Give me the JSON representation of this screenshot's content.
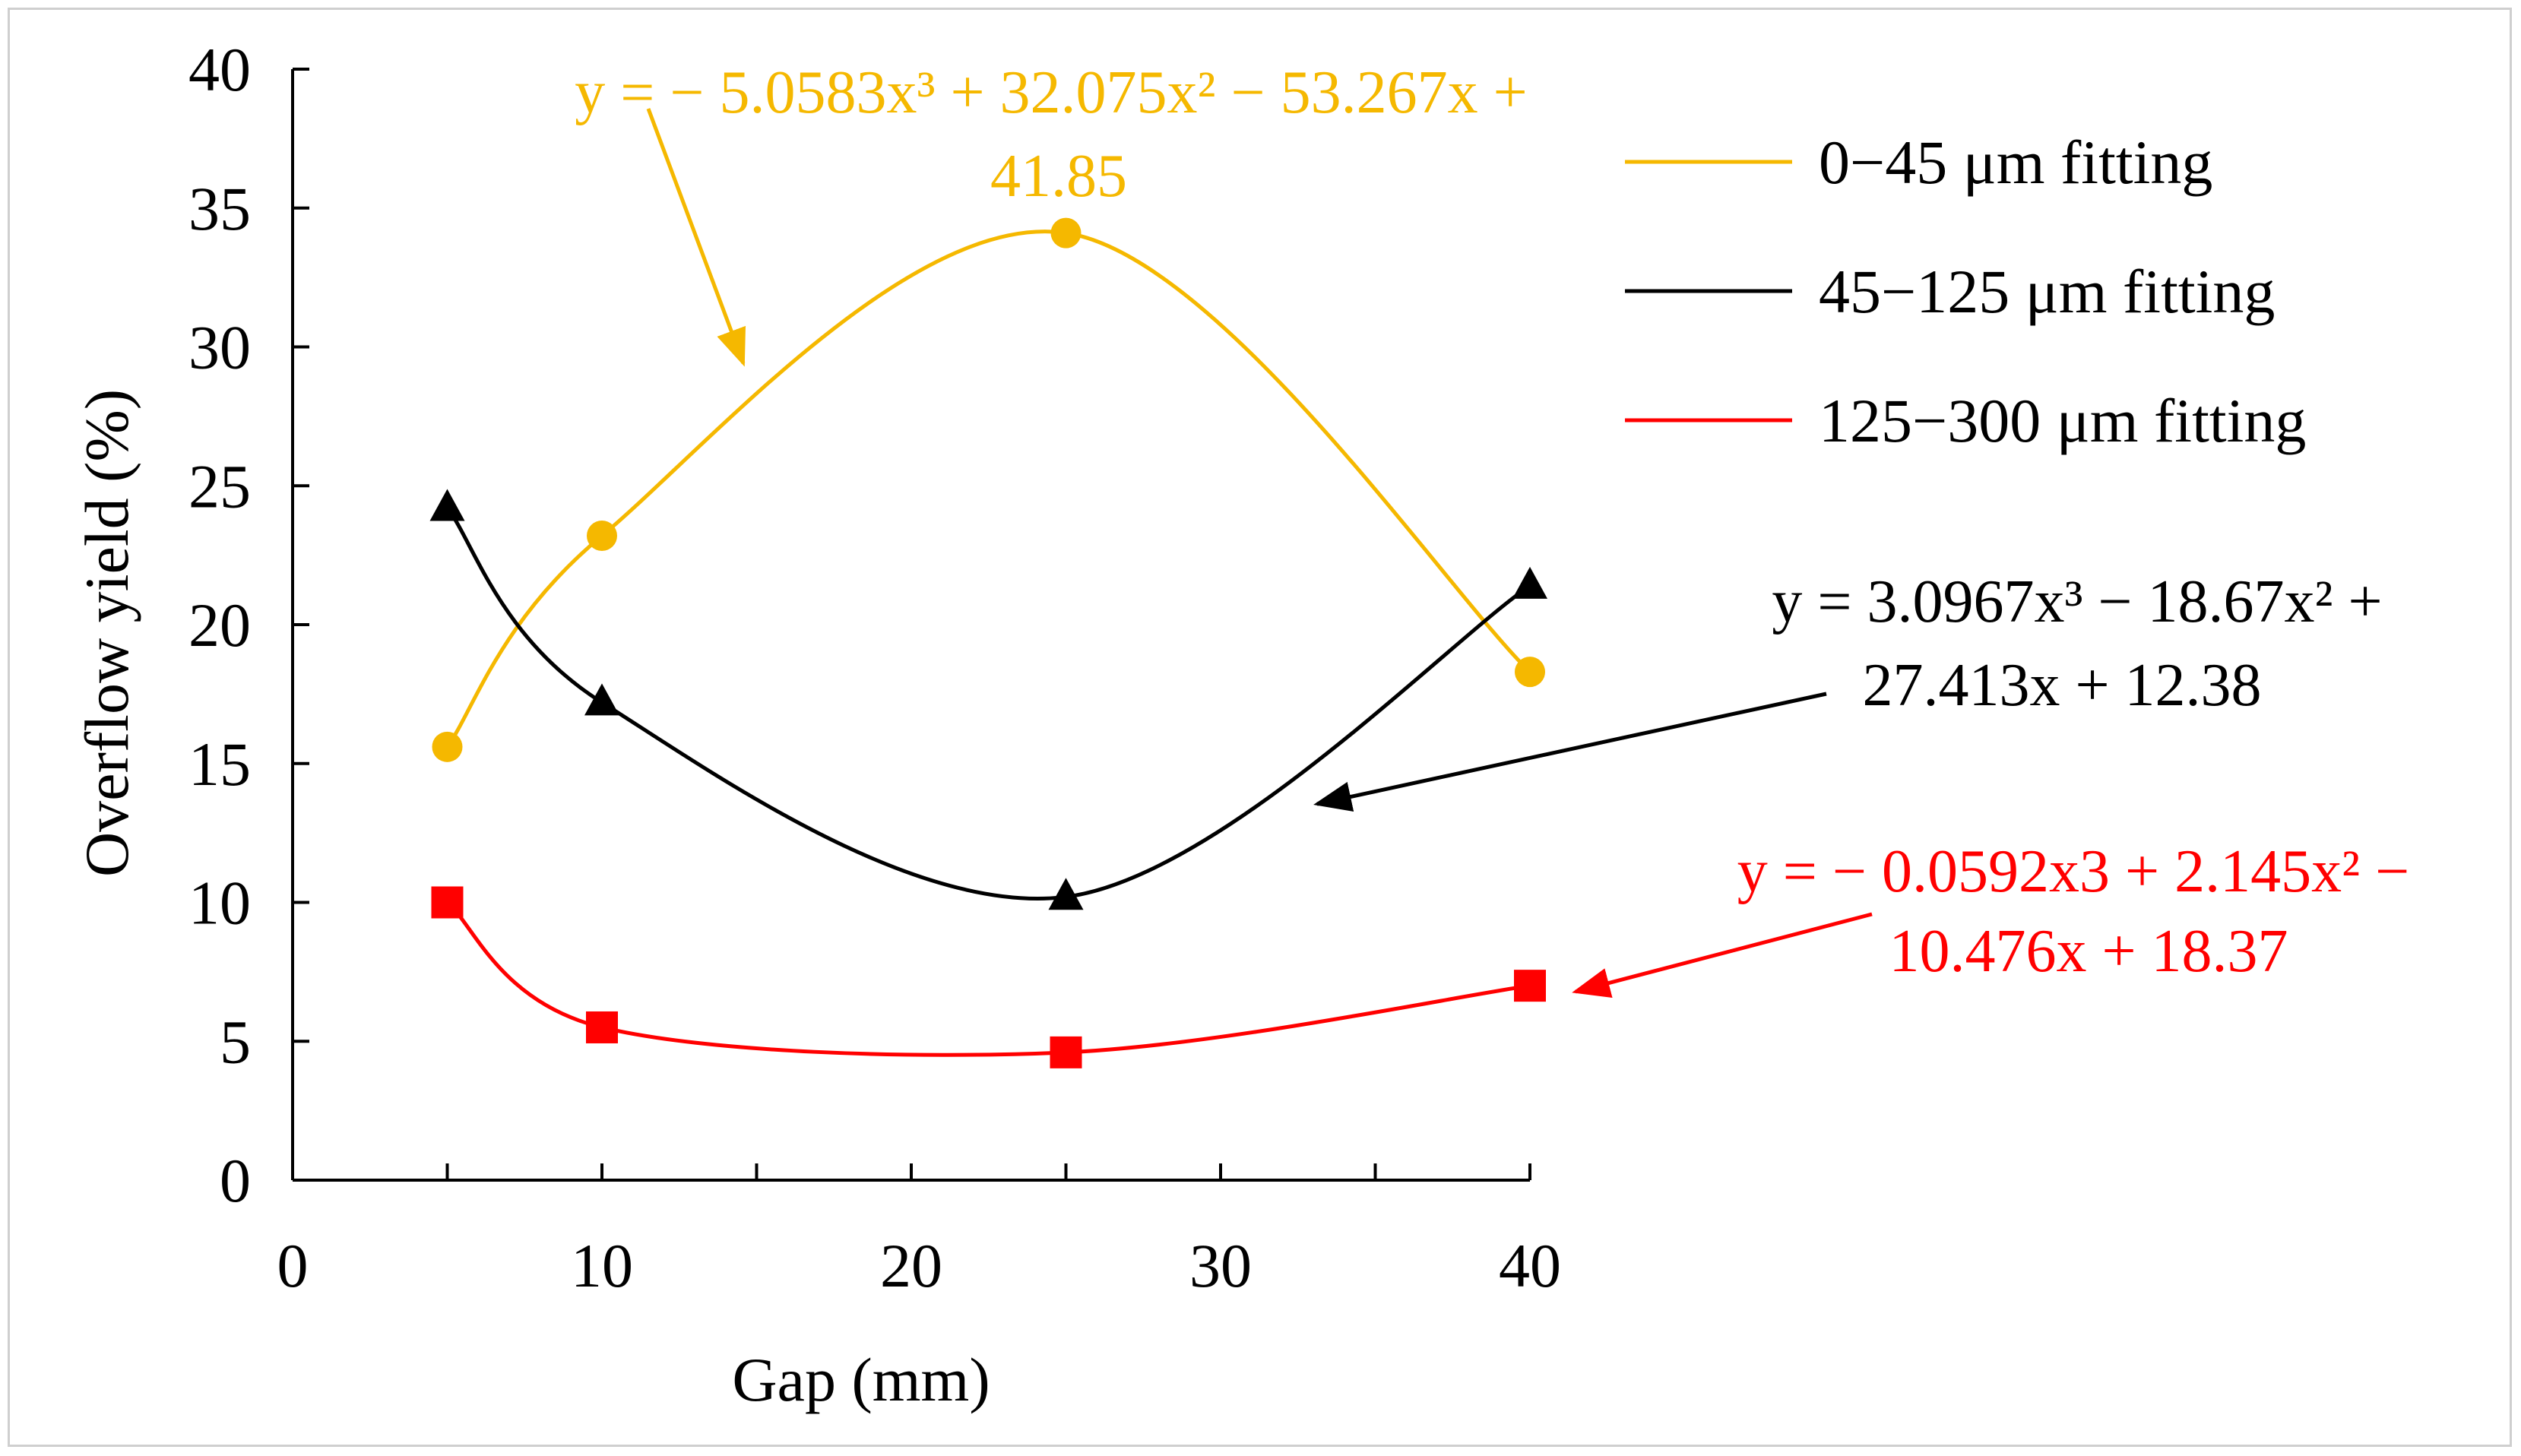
{
  "chart_data": {
    "type": "line",
    "title": "",
    "xlabel": "Gap (mm)",
    "ylabel": "Overflow yield (%)",
    "xlim": [
      0,
      40
    ],
    "ylim": [
      0,
      40
    ],
    "xticks": [
      0,
      10,
      20,
      30,
      40
    ],
    "yticks": [
      0,
      5,
      10,
      15,
      20,
      25,
      30,
      35,
      40
    ],
    "legend_position": "top-right",
    "series": [
      {
        "name": "0−45 μm fitting",
        "color": "#F5B800",
        "marker": "circle",
        "x": [
          5,
          10,
          25,
          40
        ],
        "y": [
          15.6,
          23.2,
          34.1,
          18.3
        ],
        "equation_line1": "y = − 5.0583x³ + 32.075x² − 53.267x +",
        "equation_line2": "41.85"
      },
      {
        "name": "45−125 μm fitting",
        "color": "#000000",
        "marker": "triangle",
        "x": [
          5,
          10,
          25,
          40
        ],
        "y": [
          24.2,
          17.2,
          10.2,
          21.4
        ],
        "equation_line1": "y = 3.0967x³ − 18.67x² +",
        "equation_line2": "27.413x + 12.38"
      },
      {
        "name": "125−300 μm fitting",
        "color": "#FF0000",
        "marker": "square",
        "x": [
          5,
          10,
          25,
          40
        ],
        "y": [
          10.0,
          5.5,
          4.6,
          7.0
        ],
        "equation_line1": "y = − 0.0592x3 + 2.145x² −",
        "equation_line2": "10.476x + 18.37"
      }
    ]
  }
}
